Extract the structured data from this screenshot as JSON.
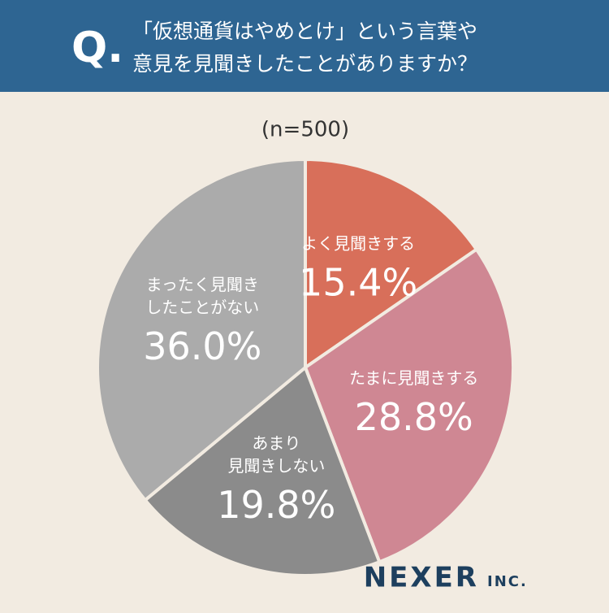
{
  "chart_data": {
    "type": "pie",
    "question_mark": "Q.",
    "title": [
      "「仮想通貨はやめとけ」という言葉や",
      "意見を見聞きしたことがありますか？"
    ],
    "subtitle": "(n=500)",
    "categories": [
      [
        "よく見聞きする"
      ],
      [
        "たまに見聞きする"
      ],
      [
        "あまり",
        "見聞きしない"
      ],
      [
        "まったく見聞き",
        "したことがない"
      ]
    ],
    "values": [
      15.4,
      28.8,
      19.8,
      36.0
    ],
    "value_labels": [
      "15.4%",
      "28.8%",
      "19.8%",
      "36.0%"
    ],
    "colors": [
      "#d86f5a",
      "#cf8793",
      "#8b8b8b",
      "#ababab"
    ],
    "logo": "NEXER",
    "logo_suffix": "INC."
  }
}
